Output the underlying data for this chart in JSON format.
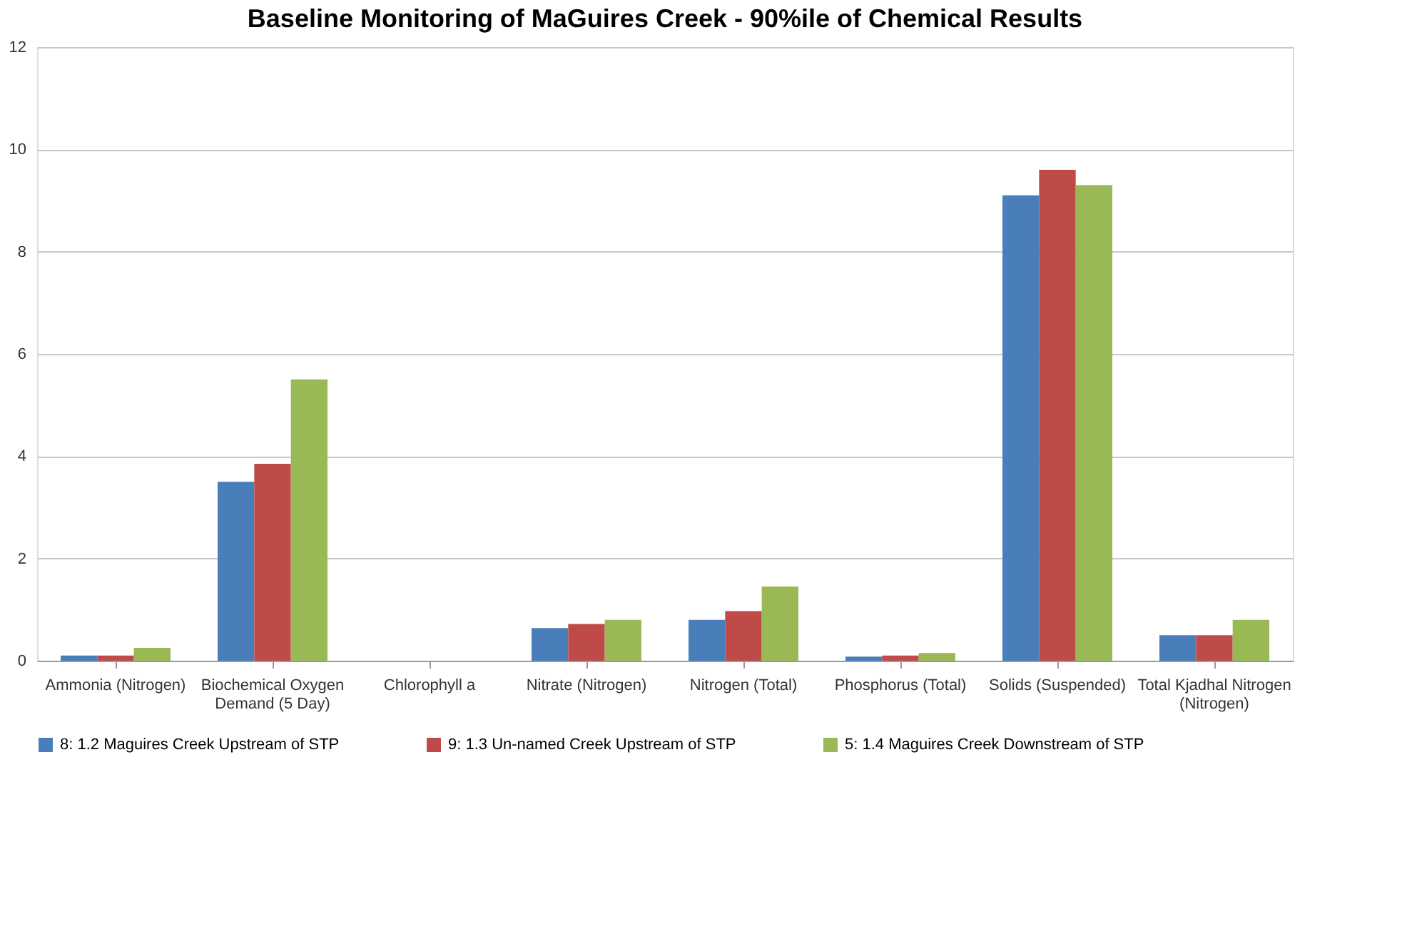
{
  "chart_data": {
    "type": "bar",
    "title": "Baseline Monitoring of MaGuires Creek - 90%ile of Chemical Results",
    "categories": [
      "Ammonia (Nitrogen)",
      "Biochemical Oxygen Demand (5 Day)",
      "Chlorophyll a",
      "Nitrate (Nitrogen)",
      "Nitrogen (Total)",
      "Phosphorus (Total)",
      "Solids (Suspended)",
      "Total Kjadhal Nitrogen (Nitrogen)"
    ],
    "series": [
      {
        "name": "8: 1.2 Maguires Creek Upstream of STP",
        "color": "#4a7ebb",
        "values": [
          0.1,
          3.5,
          null,
          0.64,
          0.8,
          0.08,
          9.1,
          0.5
        ]
      },
      {
        "name": "9: 1.3 Un-named Creek Upstream of STP",
        "color": "#be4b48",
        "values": [
          0.1,
          3.85,
          null,
          0.72,
          0.97,
          0.1,
          9.6,
          0.5
        ]
      },
      {
        "name": "5: 1.4 Maguires Creek Downstream of STP",
        "color": "#98b954",
        "values": [
          0.25,
          5.5,
          null,
          0.8,
          1.45,
          0.15,
          9.3,
          0.8
        ]
      }
    ],
    "ylim": [
      0,
      12
    ],
    "yticks": [
      0,
      2,
      4,
      6,
      8,
      10,
      12
    ],
    "grid": "y",
    "legend": "bottom"
  }
}
